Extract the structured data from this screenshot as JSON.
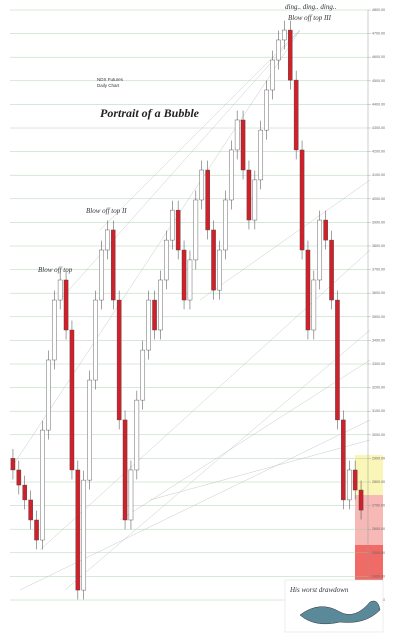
{
  "chart_data": {
    "type": "candlestick",
    "title": "Portrait of a Bubble",
    "subtitle": [
      "NDX Futures",
      "Daily Chart"
    ],
    "annotations": [
      "ding.. ding.. ding..",
      "Blow off top",
      "Blow off top II",
      "Blow off top III",
      "His worst drawdown"
    ],
    "up_color": "#ffffff",
    "down_color": "#d0202a",
    "grid_color": "#9cc59c",
    "grid": true,
    "ylim": [
      2300,
      4800
    ],
    "yticks": [
      {
        "value": 2300,
        "label": "2300.00"
      },
      {
        "value": 2400,
        "label": "2400.00"
      },
      {
        "value": 2500,
        "label": "2500.00"
      },
      {
        "value": 2600,
        "label": "2600.00"
      },
      {
        "value": 2700,
        "label": "2700.00"
      },
      {
        "value": 2800,
        "label": "2800.00"
      },
      {
        "value": 2900,
        "label": "2900.00"
      },
      {
        "value": 3000,
        "label": "3000.00"
      },
      {
        "value": 3100,
        "label": "3100.00"
      },
      {
        "value": 3200,
        "label": "3200.00"
      },
      {
        "value": 3300,
        "label": "3300.00"
      },
      {
        "value": 3400,
        "label": "3400.00"
      },
      {
        "value": 3500,
        "label": "3500.00"
      },
      {
        "value": 3600,
        "label": "3600.00"
      },
      {
        "value": 3700,
        "label": "3700.00"
      },
      {
        "value": 3800,
        "label": "3800.00"
      },
      {
        "value": 3900,
        "label": "3900.00"
      },
      {
        "value": 4000,
        "label": "4000.00"
      },
      {
        "value": 4100,
        "label": "4100.00"
      },
      {
        "value": 4200,
        "label": "4200.00"
      },
      {
        "value": 4300,
        "label": "4300.00"
      },
      {
        "value": 4400,
        "label": "4400.00"
      },
      {
        "value": 4500,
        "label": "4500.00"
      },
      {
        "value": 4600,
        "label": "4600.00"
      },
      {
        "value": 4700,
        "label": "4700.00"
      },
      {
        "value": 4800,
        "label": "4800.00"
      }
    ],
    "open": [
      2900,
      2851,
      2787,
      2724,
      2639,
      2554,
      3020,
      3317,
      3571,
      3656,
      3444,
      2851,
      2342,
      2808,
      3232,
      3571,
      3783,
      3868,
      3571,
      3063,
      2639,
      2851,
      3147,
      3359,
      3571,
      3444,
      3656,
      3825,
      3952,
      3783,
      3571,
      3741,
      3995,
      4122,
      3868,
      3613,
      3783,
      3995,
      4207,
      4334,
      4122,
      3910,
      4080,
      4291,
      4461,
      4588,
      4673,
      4715,
      4503,
      4207,
      3783,
      3444,
      3656,
      3910,
      3825,
      3571,
      3063,
      2724,
      2851,
      2766
    ],
    "high": [
      2940,
      2891,
      2827,
      2764,
      2679,
      3060,
      3357,
      3611,
      3696,
      3696,
      3484,
      2891,
      2848,
      3272,
      3611,
      3823,
      3908,
      3908,
      3611,
      3103,
      2891,
      3187,
      3399,
      3611,
      3611,
      3696,
      3865,
      3992,
      3992,
      3823,
      3781,
      4035,
      4162,
      4162,
      3908,
      3823,
      4035,
      4247,
      4374,
      4374,
      4162,
      4120,
      4331,
      4501,
      4628,
      4713,
      4755,
      4755,
      4543,
      4247,
      3823,
      3696,
      3950,
      3950,
      3865,
      3611,
      3103,
      2891,
      2891,
      2806
    ],
    "low": [
      2811,
      2747,
      2684,
      2599,
      2514,
      2514,
      2980,
      3277,
      3531,
      3404,
      2811,
      2302,
      2302,
      2768,
      3192,
      3531,
      3743,
      3531,
      3023,
      2599,
      2599,
      2811,
      3107,
      3319,
      3404,
      3404,
      3616,
      3785,
      3743,
      3531,
      3531,
      3701,
      3955,
      3828,
      3573,
      3573,
      3743,
      3955,
      4167,
      4082,
      3870,
      3870,
      4040,
      4251,
      4421,
      4548,
      4633,
      4463,
      4167,
      3743,
      3404,
      3404,
      3616,
      3785,
      3531,
      3023,
      2684,
      2684,
      2726,
      2641
    ],
    "close": [
      2851,
      2787,
      2724,
      2639,
      2554,
      3020,
      3317,
      3571,
      3656,
      3444,
      2851,
      2342,
      2808,
      3232,
      3571,
      3783,
      3868,
      3571,
      3063,
      2639,
      2851,
      3147,
      3359,
      3571,
      3444,
      3656,
      3825,
      3952,
      3783,
      3571,
      3741,
      3995,
      4122,
      3868,
      3613,
      3783,
      3995,
      4207,
      4334,
      4122,
      3910,
      4080,
      4291,
      4461,
      4588,
      4673,
      4715,
      4503,
      4207,
      3783,
      3444,
      3656,
      3910,
      3825,
      3571,
      3063,
      2724,
      2851,
      2766,
      2681
    ]
  }
}
